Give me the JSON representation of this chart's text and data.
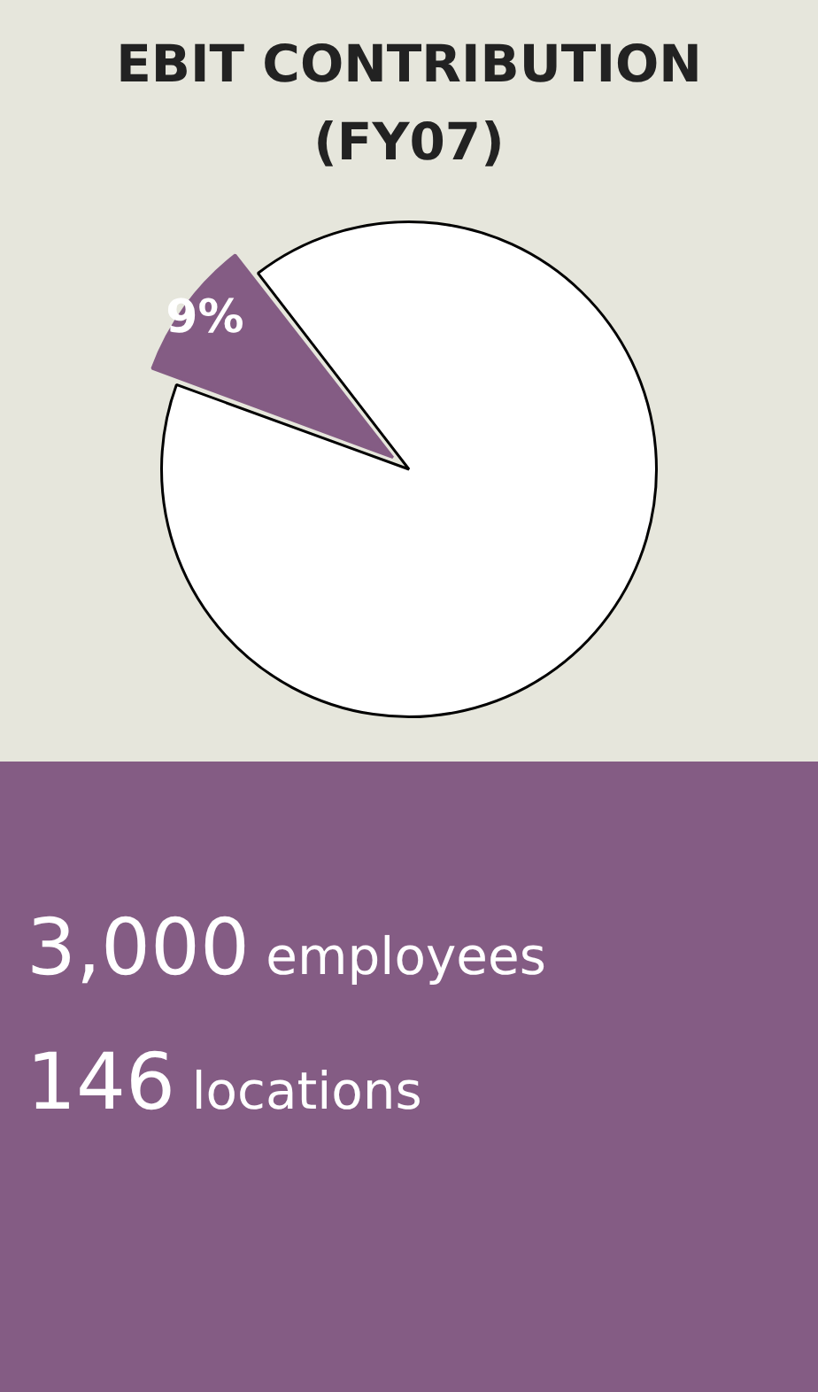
{
  "chart_data": {
    "type": "pie",
    "title": "EBIT CONTRIBUTION (FY07)",
    "categories": [
      null,
      null
    ],
    "values": [
      9,
      91
    ],
    "colors": [
      "#845c84",
      "#ffffff"
    ],
    "value_labels": [
      "9%",
      null
    ],
    "legend": false,
    "annotations": [
      "3,000 employees",
      "146 locations"
    ]
  }
}
